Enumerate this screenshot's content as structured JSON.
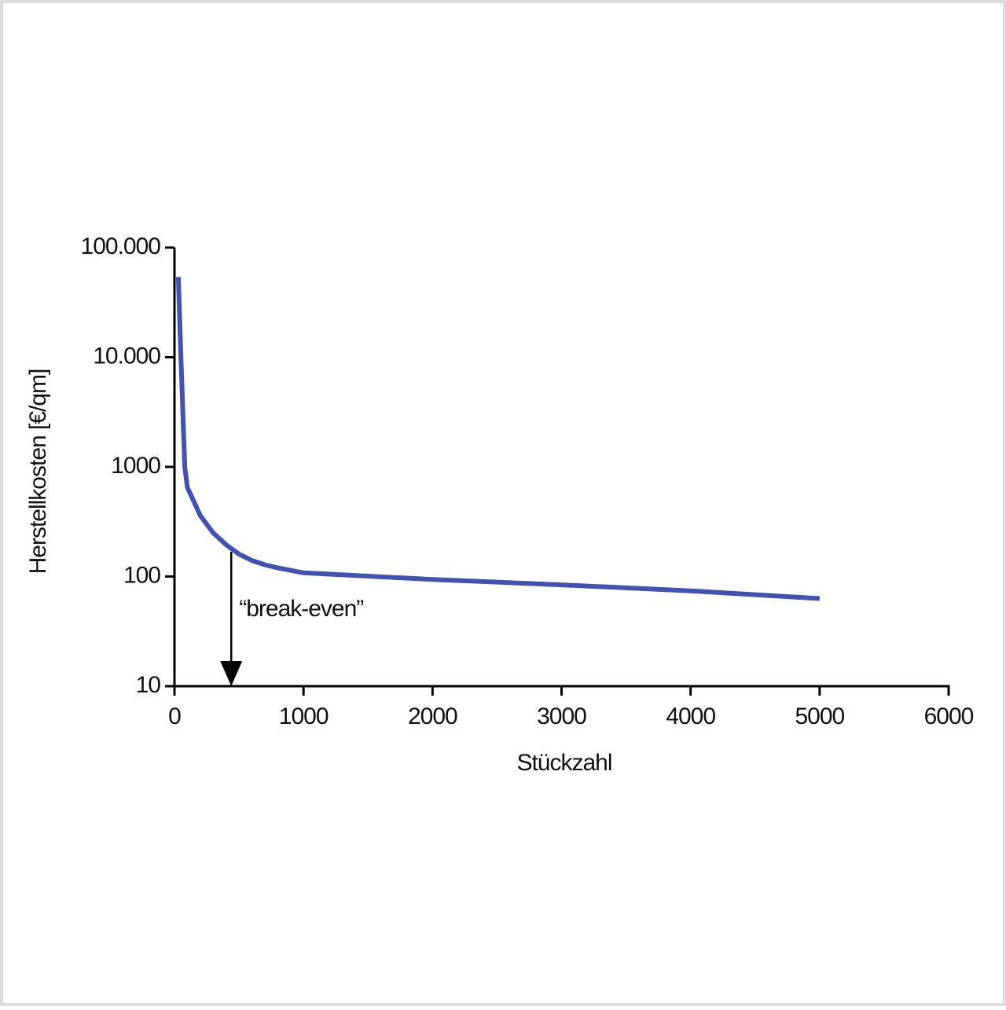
{
  "chart_data": {
    "type": "line",
    "x_label": "Stückzahl",
    "y_label": "Herstellkosten   [€/qm]",
    "x": [
      30,
      50,
      80,
      100,
      200,
      300,
      400,
      500,
      600,
      700,
      800,
      1000,
      2000,
      3000,
      4000,
      5000
    ],
    "values": [
      54000,
      10000,
      1000,
      650,
      360,
      250,
      195,
      160,
      140,
      128,
      120,
      108,
      94,
      84,
      74,
      63
    ],
    "color": "#4252b3",
    "xlim": [
      0,
      6000
    ],
    "xticks": [
      0,
      1000,
      2000,
      3000,
      4000,
      5000,
      6000
    ],
    "ylim": [
      10,
      100000
    ],
    "y_log": true,
    "yticks": [
      10,
      100,
      1000,
      {
        "value": 10000,
        "label": "10.000"
      },
      {
        "value": 100000,
        "label": "100.000"
      }
    ],
    "grid": false,
    "annotation": {
      "text": "“break-even”",
      "x": 440
    }
  }
}
